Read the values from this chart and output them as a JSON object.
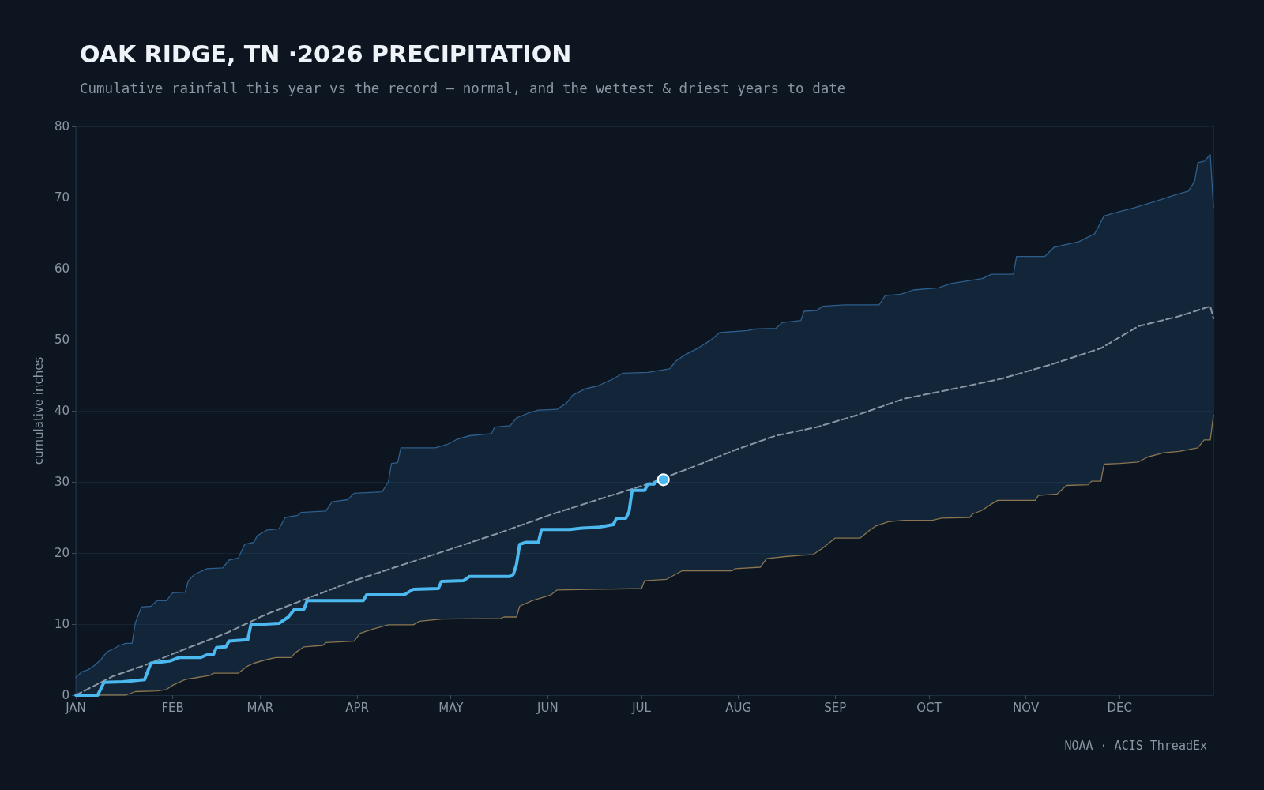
{
  "chart_data": {
    "type": "line",
    "title": "OAK RIDGE, TN ·2026 PRECIPITATION",
    "subtitle": "Cumulative rainfall this year vs the record — normal, and the wettest & driest years to date",
    "ylabel": "cumulative inches",
    "annotations": [
      "NOAA · ACIS ThreadEx"
    ],
    "xlim": [
      "--01-01",
      "--12-31"
    ],
    "xticks": [
      {
        "value": "--01-01",
        "label": "JAN"
      },
      {
        "value": "--02-01",
        "label": "FEB"
      },
      {
        "value": "--03-01",
        "label": "MAR"
      },
      {
        "value": "--04-01",
        "label": "APR"
      },
      {
        "value": "--05-01",
        "label": "MAY"
      },
      {
        "value": "--06-01",
        "label": "JUN"
      },
      {
        "value": "--07-01",
        "label": "JUL"
      },
      {
        "value": "--08-01",
        "label": "AUG"
      },
      {
        "value": "--09-01",
        "label": "SEP"
      },
      {
        "value": "--10-01",
        "label": "OCT"
      },
      {
        "value": "--11-01",
        "label": "NOV"
      },
      {
        "value": "--12-01",
        "label": "DEC"
      }
    ],
    "ylim": [
      0,
      80
    ],
    "yticks": [
      0,
      10,
      20,
      30,
      40,
      50,
      60,
      70,
      80
    ],
    "grid": "y",
    "series": [
      {
        "type": "area",
        "color": "#2e5f8c",
        "x": [
          "--01-01",
          "--01-03",
          "--01-05",
          "--01-07",
          "--01-09",
          "--01-11",
          "--01-13",
          "--01-15",
          "--01-17",
          "--01-19",
          "--01-20",
          "--01-22",
          "--01-25",
          "--01-27",
          "--01-30",
          "--02-01",
          "--02-05",
          "--02-06",
          "--02-08",
          "--02-12",
          "--02-17",
          "--02-19",
          "--02-22",
          "--02-24",
          "--02-27",
          "--02-28",
          "--03-03",
          "--03-07",
          "--03-09",
          "--03-13",
          "--03-14",
          "--03-22",
          "--03-24",
          "--03-29",
          "--03-31",
          "--04-09",
          "--04-11",
          "--04-12",
          "--04-14",
          "--04-15",
          "--04-26",
          "--04-30",
          "--05-03",
          "--05-07",
          "--05-14",
          "--05-15",
          "--05-20",
          "--05-22",
          "--05-26",
          "--05-29",
          "--06-04",
          "--06-07",
          "--06-09",
          "--06-13",
          "--06-17",
          "--06-22",
          "--06-25",
          "--07-03",
          "--07-10",
          "--07-12",
          "--07-15",
          "--07-19",
          "--07-23",
          "--07-26",
          "--08-04",
          "--08-06",
          "--08-13",
          "--08-15",
          "--08-21",
          "--08-22",
          "--08-26",
          "--08-28",
          "--09-04",
          "--09-15",
          "--09-17",
          "--09-22",
          "--09-26",
          "--10-04",
          "--10-08",
          "--10-18",
          "--10-21",
          "--10-28",
          "--10-29",
          "--11-07",
          "--11-10",
          "--11-18",
          "--11-23",
          "--11-26",
          "--11-29",
          "--12-06",
          "--12-12",
          "--12-19",
          "--12-23",
          "--12-25",
          "--12-26",
          "--12-28",
          "--12-30",
          "--12-31"
        ],
        "values": [
          2.5,
          3.3,
          3.6,
          4.2,
          5.0,
          6.1,
          6.5,
          7.0,
          7.3,
          7.3,
          10.1,
          12.4,
          12.5,
          13.3,
          13.3,
          14.4,
          14.5,
          16.1,
          17.0,
          17.8,
          17.9,
          19.0,
          19.3,
          21.2,
          21.5,
          22.4,
          23.2,
          23.4,
          25.0,
          25.3,
          25.7,
          25.9,
          27.2,
          27.5,
          28.4,
          28.6,
          30.0,
          32.6,
          32.7,
          34.8,
          34.8,
          35.3,
          36.0,
          36.5,
          36.8,
          37.7,
          37.9,
          39.0,
          39.7,
          40.1,
          40.2,
          41.1,
          42.2,
          43.1,
          43.5,
          44.5,
          45.3,
          45.4,
          45.9,
          47.0,
          47.9,
          48.8,
          49.9,
          51.0,
          51.3,
          51.5,
          51.6,
          52.4,
          52.7,
          54.0,
          54.1,
          54.7,
          54.9,
          54.9,
          56.2,
          56.4,
          57.0,
          57.3,
          57.9,
          58.6,
          59.2,
          59.2,
          61.7,
          61.7,
          63.0,
          63.8,
          64.9,
          67.4,
          67.8,
          68.6,
          69.4,
          70.4,
          70.9,
          72.3,
          74.9,
          75.1,
          76.0,
          68.6
        ]
      },
      {
        "color": "#8a7650",
        "x": [
          "--01-01",
          "--01-17",
          "--01-20",
          "--01-27",
          "--01-30",
          "--02-01",
          "--02-05",
          "--02-09",
          "--02-13",
          "--02-14",
          "--02-22",
          "--02-25",
          "--02-27",
          "--03-03",
          "--03-06",
          "--03-11",
          "--03-12",
          "--03-15",
          "--03-21",
          "--03-22",
          "--03-31",
          "--04-02",
          "--04-06",
          "--04-11",
          "--04-19",
          "--04-21",
          "--04-28",
          "--05-17",
          "--05-18",
          "--05-22",
          "--05-23",
          "--05-27",
          "--06-02",
          "--06-04",
          "--06-17",
          "--07-01",
          "--07-02",
          "--07-09",
          "--07-14",
          "--07-30",
          "--07-31",
          "--08-08",
          "--08-10",
          "--08-16",
          "--08-25",
          "--08-28",
          "--09-01",
          "--09-09",
          "--09-12",
          "--09-14",
          "--09-18",
          "--09-23",
          "--10-02",
          "--10-05",
          "--10-14",
          "--10-15",
          "--10-18",
          "--10-21",
          "--10-23",
          "--11-04",
          "--11-05",
          "--11-11",
          "--11-14",
          "--11-21",
          "--11-22",
          "--11-25",
          "--11-26",
          "--12-01",
          "--12-07",
          "--12-10",
          "--12-15",
          "--12-20",
          "--12-26",
          "--12-28",
          "--12-30",
          "--12-31"
        ],
        "values": [
          0,
          0,
          0.5,
          0.6,
          0.8,
          1.4,
          2.2,
          2.5,
          2.8,
          3.1,
          3.1,
          4.1,
          4.5,
          5.0,
          5.3,
          5.3,
          5.9,
          6.8,
          7.0,
          7.4,
          7.6,
          8.7,
          9.3,
          9.9,
          9.9,
          10.4,
          10.7,
          10.8,
          11.0,
          11.0,
          12.5,
          13.3,
          14.1,
          14.8,
          14.9,
          15.0,
          16.1,
          16.3,
          17.5,
          17.5,
          17.8,
          18.0,
          19.2,
          19.5,
          19.8,
          20.7,
          22.1,
          22.1,
          23.2,
          23.8,
          24.4,
          24.6,
          24.6,
          24.9,
          25.0,
          25.5,
          26.0,
          26.9,
          27.4,
          27.4,
          28.1,
          28.3,
          29.5,
          29.6,
          30.1,
          30.1,
          32.5,
          32.6,
          32.8,
          33.5,
          34.1,
          34.3,
          34.8,
          35.9,
          35.9,
          39.4
        ]
      },
      {
        "color": "#8a96a3",
        "line_style": "dashed",
        "x": [
          "--01-01",
          "--01-13",
          "--01-23",
          "--02-05",
          "--02-18",
          "--03-03",
          "--03-16",
          "--03-31",
          "--04-16",
          "--05-02",
          "--05-17",
          "--06-02",
          "--06-17",
          "--07-03",
          "--07-18",
          "--07-31",
          "--08-13",
          "--08-26",
          "--09-08",
          "--09-23",
          "--10-09",
          "--10-24",
          "--11-09",
          "--11-25",
          "--12-07",
          "--12-20",
          "--12-30",
          "--12-31"
        ],
        "values": [
          0,
          2.7,
          4.2,
          6.5,
          8.7,
          11.4,
          13.6,
          16.1,
          18.4,
          20.7,
          22.9,
          25.4,
          27.5,
          29.7,
          32.2,
          34.5,
          36.5,
          37.7,
          39.4,
          41.7,
          43.1,
          44.5,
          46.5,
          48.8,
          51.9,
          53.3,
          54.7,
          53.0
        ]
      },
      {
        "color": "#4cb8f0",
        "x": [
          "--01-01",
          "--01-08",
          "--01-10",
          "--01-16",
          "--01-23",
          "--01-25",
          "--01-31",
          "--02-03",
          "--02-10",
          "--02-12",
          "--02-14",
          "--02-15",
          "--02-18",
          "--02-19",
          "--02-25",
          "--02-26",
          "--03-07",
          "--03-10",
          "--03-12",
          "--03-15",
          "--03-16",
          "--04-03",
          "--04-04",
          "--04-16",
          "--04-19",
          "--04-27",
          "--04-28",
          "--05-05",
          "--05-07",
          "--05-20",
          "--05-21",
          "--05-22",
          "--05-23",
          "--05-25",
          "--05-29",
          "--05-30",
          "--06-08",
          "--06-12",
          "--06-17",
          "--06-22",
          "--06-23",
          "--06-26",
          "--06-27",
          "--06-28",
          "--07-02",
          "--07-03",
          "--07-05",
          "--07-06",
          "--07-08"
        ],
        "values": [
          0,
          0,
          1.8,
          1.9,
          2.2,
          4.5,
          4.8,
          5.3,
          5.3,
          5.7,
          5.7,
          6.7,
          6.8,
          7.6,
          7.8,
          9.9,
          10.1,
          11.0,
          12.1,
          12.1,
          13.3,
          13.3,
          14.1,
          14.1,
          14.9,
          15.0,
          16.0,
          16.1,
          16.7,
          16.7,
          17.0,
          18.4,
          21.2,
          21.5,
          21.5,
          23.3,
          23.3,
          23.5,
          23.6,
          24.0,
          24.9,
          24.9,
          25.8,
          28.8,
          28.8,
          29.7,
          29.7,
          30.1,
          30.3
        ]
      },
      {
        "type": "scatter",
        "color": "#4cb8f0",
        "marker": "circle",
        "x": [
          "--07-08"
        ],
        "values": [
          30.3
        ]
      }
    ]
  }
}
